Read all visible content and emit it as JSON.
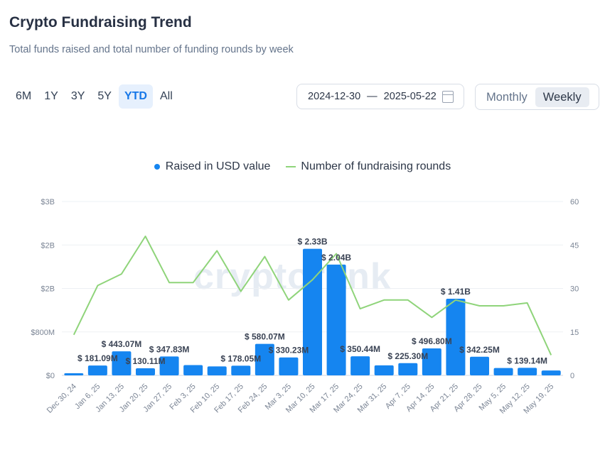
{
  "header": {
    "title": "Crypto Fundraising Trend",
    "subtitle": "Total funds raised and total number of funding rounds by week"
  },
  "range_tabs": [
    {
      "label": "6M",
      "active": false
    },
    {
      "label": "1Y",
      "active": false
    },
    {
      "label": "3Y",
      "active": false
    },
    {
      "label": "5Y",
      "active": false
    },
    {
      "label": "YTD",
      "active": true
    },
    {
      "label": "All",
      "active": false
    }
  ],
  "date_range": {
    "start": "2024-12-30",
    "separator": "—",
    "end": "2025-05-22",
    "icon": "calendar-icon"
  },
  "period_toggle": [
    {
      "label": "Monthly",
      "active": false
    },
    {
      "label": "Weekly",
      "active": true
    }
  ],
  "watermark": "cryptorank",
  "colors": {
    "accent": "#1677e8",
    "bar": "#1585f0",
    "line": "#8fd47a"
  },
  "chart_data": {
    "type": "bar",
    "categories": [
      "Dec 30, 24",
      "Jan 6, 25",
      "Jan 13, 25",
      "Jan 20, 25",
      "Jan 27, 25",
      "Feb 3, 25",
      "Feb 10, 25",
      "Feb 17, 25",
      "Feb 24, 25",
      "Mar 3, 25",
      "Mar 10, 25",
      "Mar 17, 25",
      "Mar 24, 25",
      "Mar 31, 25",
      "Apr 7, 25",
      "Apr 14, 25",
      "Apr 21, 25",
      "Apr 28, 25",
      "May 5, 25",
      "May 12, 25",
      "May 19, 25"
    ],
    "series": [
      {
        "name": "Raised in USD value",
        "type": "bar",
        "axis": "left",
        "values": [
          40000000,
          181090000,
          443070000,
          130110000,
          347830000,
          190000000,
          165000000,
          178050000,
          580070000,
          330230000,
          2330000000,
          2040000000,
          350440000,
          185000000,
          225300000,
          496800000,
          1410000000,
          342250000,
          135000000,
          139140000,
          90000000
        ]
      },
      {
        "name": "Number of fundraising rounds",
        "type": "line",
        "axis": "right",
        "values": [
          14,
          31,
          35,
          48,
          32,
          32,
          43,
          29,
          41,
          26,
          33,
          42,
          23,
          26,
          26,
          20,
          26,
          24,
          24,
          25,
          7
        ]
      }
    ],
    "bar_labels": [
      "",
      "$ 181.09M",
      "$ 443.07M",
      "$ 130.11M",
      "$ 347.83M",
      "",
      "",
      "$ 178.05M",
      "$ 580.07M",
      "$ 330.23M",
      "$ 2.33B",
      "$ 2.04B",
      "$ 350.44M",
      "",
      "$ 225.30M",
      "$ 496.80M",
      "$ 1.41B",
      "$ 342.25M",
      "",
      "$ 139.14M",
      ""
    ],
    "y_left": {
      "ticks": [
        0,
        800000000,
        1600000000,
        2400000000,
        3200000000
      ],
      "tick_labels": [
        "$0",
        "$800M",
        "$2B",
        "$2B",
        "$3B"
      ],
      "range": [
        0,
        3200000000
      ]
    },
    "y_right": {
      "ticks": [
        0,
        15,
        30,
        45,
        60
      ],
      "tick_labels": [
        "0",
        "15",
        "30",
        "45",
        "60"
      ],
      "range": [
        0,
        60
      ]
    },
    "grid": true,
    "legend_position": "top-center"
  }
}
